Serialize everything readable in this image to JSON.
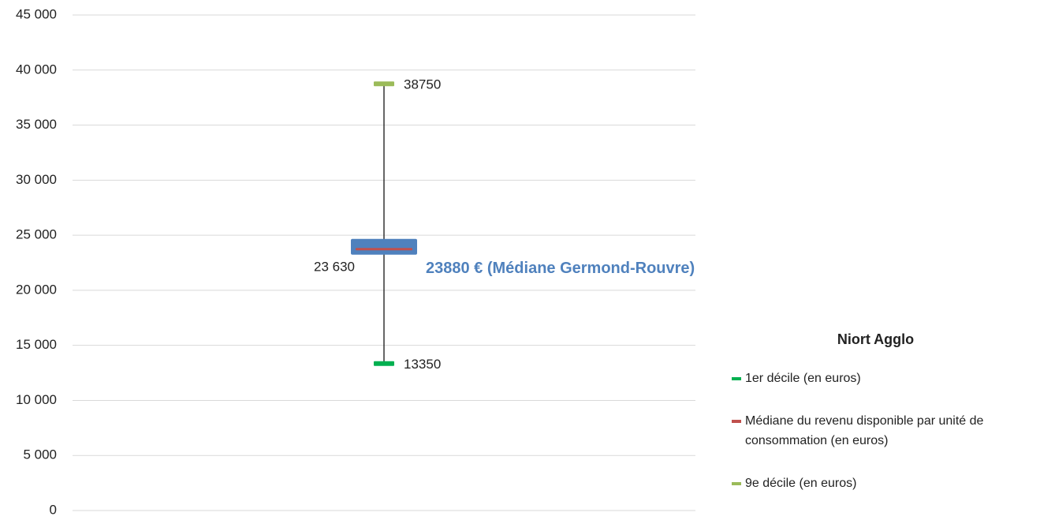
{
  "chart_data": {
    "type": "stock",
    "legend_title": "Niort Agglo",
    "categories": [
      null
    ],
    "series": [
      {
        "name": "1er décile (en euros)",
        "color": "#00b050",
        "values": [
          13350
        ]
      },
      {
        "name": "Médiane du revenu disponible par unité de consommation (en euros)",
        "color": "#c0504d",
        "values": [
          23630
        ],
        "value_labels": [
          "23 630"
        ]
      },
      {
        "name": "9e décile (en euros)",
        "color": "#9bbb59",
        "values": [
          38750
        ]
      }
    ],
    "highlight": {
      "value": 23880,
      "label": "23880 € (Médiane Germond-Rouvre)",
      "color": "#4f81bd"
    },
    "ylim": [
      0,
      45000
    ],
    "yticks": [
      0,
      {
        "value": 5000,
        "label": "5 000"
      },
      {
        "value": 10000,
        "label": "10 000"
      },
      {
        "value": 15000,
        "label": "15 000"
      },
      {
        "value": 20000,
        "label": "20 000"
      },
      {
        "value": 25000,
        "label": "25 000"
      },
      {
        "value": 30000,
        "label": "30 000"
      },
      {
        "value": 35000,
        "label": "35 000"
      },
      {
        "value": 40000,
        "label": "40 000"
      },
      {
        "value": 45000,
        "label": "45 000"
      }
    ],
    "grid": true
  }
}
